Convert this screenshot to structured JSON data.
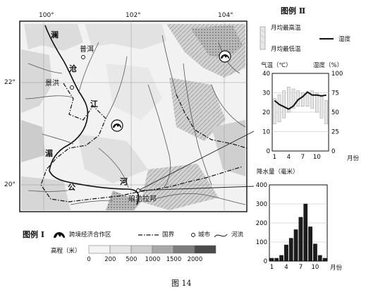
{
  "map": {
    "lon_labels": [
      "100°",
      "102°",
      "104°"
    ],
    "lat_labels": [
      "22°",
      "20°"
    ],
    "places": {
      "puer": "普洱",
      "jinghong": "景洪",
      "luangprabang": "琅勃拉邦"
    },
    "river_chars": {
      "lan": "澜",
      "cang": "沧",
      "jiang": "江",
      "mei": "湄",
      "gong": "公",
      "he": "河"
    }
  },
  "legend1": {
    "title": "图例 Ⅰ",
    "items": [
      {
        "icon": "cooperation-zone-icon",
        "label": "跨境经济合作区"
      },
      {
        "icon": "border-line-icon",
        "label": "国界"
      },
      {
        "icon": "city-icon",
        "label": "城市"
      },
      {
        "icon": "river-icon",
        "label": "河流"
      }
    ],
    "elevation": {
      "label": "高程（米）",
      "ticks": [
        "0",
        "200",
        "500",
        "1000",
        "1500",
        "2000"
      ],
      "colors": [
        "#f4f4f4",
        "#e4e4e4",
        "#cfcfcf",
        "#a9a9a9",
        "#7d7d7d",
        "#4a4a4a"
      ]
    }
  },
  "legend2": {
    "title": "图例 Ⅱ",
    "bar_top_label": "月均最高温",
    "bar_bottom_label": "月均最低温",
    "humidity_label": "湿度"
  },
  "chart_data": [
    {
      "type": "line",
      "title": "",
      "ylabel_left": "气温（℃）",
      "ylabel_right": "湿度（%）",
      "xlabel": "月份",
      "x": [
        1,
        2,
        3,
        4,
        5,
        6,
        7,
        8,
        9,
        10,
        11,
        12
      ],
      "x_ticks": [
        "1",
        "4",
        "7",
        "10"
      ],
      "y_ticks_left": [
        "0",
        "10",
        "20",
        "30",
        "40"
      ],
      "y_ticks_right": [
        "0",
        "25",
        "50",
        "75",
        "100"
      ],
      "ylim_left": [
        0,
        40
      ],
      "ylim_right": [
        0,
        100
      ],
      "temp_max": [
        27,
        29,
        31,
        33,
        32,
        31,
        30,
        30,
        31,
        30,
        28,
        26
      ],
      "temp_min": [
        14,
        15,
        17,
        20,
        22,
        23,
        23,
        23,
        22,
        20,
        17,
        14
      ],
      "humidity": [
        65,
        60,
        57,
        54,
        58,
        66,
        70,
        76,
        72,
        72,
        71,
        72
      ]
    },
    {
      "type": "bar",
      "title": "降水量（毫米）",
      "xlabel": "月份",
      "categories": [
        "1",
        "2",
        "3",
        "4",
        "5",
        "6",
        "7",
        "8",
        "9",
        "10",
        "11",
        "12"
      ],
      "x_ticks": [
        "1",
        "4",
        "7",
        "10"
      ],
      "y_ticks": [
        "0",
        "100",
        "200",
        "300",
        "400"
      ],
      "ylim": [
        0,
        400
      ],
      "values": [
        15,
        15,
        30,
        85,
        120,
        165,
        230,
        300,
        180,
        90,
        30,
        15
      ]
    }
  ],
  "figure": {
    "caption": "图 14"
  }
}
